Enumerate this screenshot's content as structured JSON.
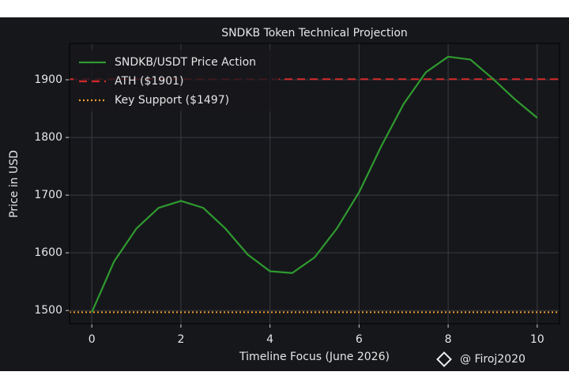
{
  "chart_data": {
    "type": "line",
    "title": "SNDKB Token Technical Projection",
    "xlabel": "Timeline Focus (June 2026)",
    "ylabel": "Price in USD",
    "x": [
      0,
      0.5,
      1,
      1.5,
      2,
      2.5,
      3,
      3.5,
      4,
      4.5,
      5,
      5.5,
      6,
      6.5,
      7,
      7.5,
      8,
      8.5,
      9,
      9.5,
      10
    ],
    "series": [
      {
        "name": "SNDKB/USDT Price Action",
        "color": "#2f9a2f",
        "values": [
          1497,
          1585,
          1642,
          1678,
          1690,
          1678,
          1642,
          1597,
          1568,
          1565,
          1592,
          1642,
          1705,
          1785,
          1858,
          1913,
          1940,
          1935,
          1902,
          1866,
          1834
        ]
      }
    ],
    "reference_lines": [
      {
        "name": "ATH ($1901)",
        "value": 1901,
        "color": "#d42a2a",
        "style": "dashed"
      },
      {
        "name": "Key Support ($1497)",
        "value": 1497,
        "color": "#f0a030",
        "style": "dotted"
      }
    ],
    "xlim": [
      -0.5,
      10.5
    ],
    "ylim": [
      1477,
      1963
    ],
    "xticks": [
      0,
      2,
      4,
      6,
      8,
      10
    ],
    "yticks": [
      1500,
      1600,
      1700,
      1800,
      1900
    ],
    "grid": true,
    "legend": "upper left",
    "watermark": "@ Firoj2020"
  }
}
